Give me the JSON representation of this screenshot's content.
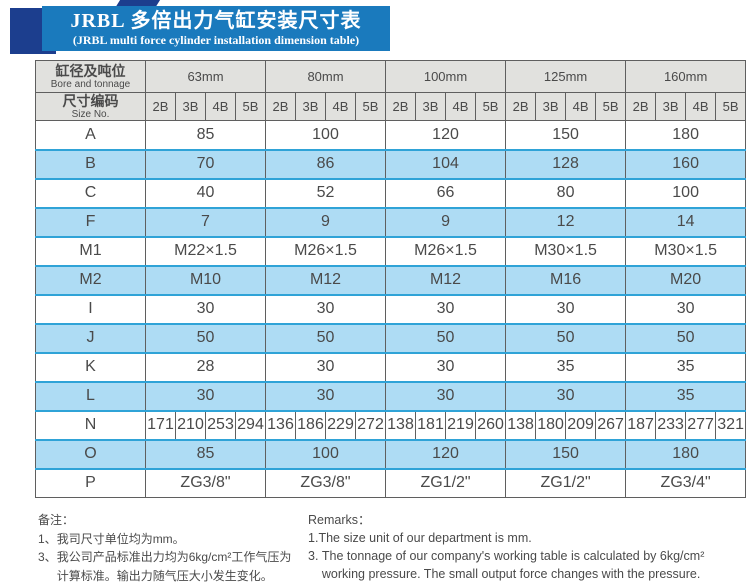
{
  "banner": {
    "title_cn": "JRBL 多倍出力气缸安装尺寸表",
    "title_en": "(JRBL multi force cylinder installation dimension table)"
  },
  "table": {
    "corner": {
      "bore_cn": "缸径及吨位",
      "bore_en": "Bore and tonnage",
      "size_cn": "尺寸编码",
      "size_en": "Size No."
    },
    "bores": [
      "63mm",
      "80mm",
      "100mm",
      "125mm",
      "160mm"
    ],
    "size_codes": [
      "2B",
      "3B",
      "4B",
      "5B"
    ],
    "rows": [
      {
        "label": "A",
        "type": "merged",
        "values": [
          "85",
          "100",
          "120",
          "150",
          "180"
        ]
      },
      {
        "label": "B",
        "type": "merged",
        "values": [
          "70",
          "86",
          "104",
          "128",
          "160"
        ]
      },
      {
        "label": "C",
        "type": "merged",
        "values": [
          "40",
          "52",
          "66",
          "80",
          "100"
        ]
      },
      {
        "label": "F",
        "type": "merged",
        "values": [
          "7",
          "9",
          "9",
          "12",
          "14"
        ]
      },
      {
        "label": "M1",
        "type": "merged",
        "values": [
          "M22×1.5",
          "M26×1.5",
          "M26×1.5",
          "M30×1.5",
          "M30×1.5"
        ]
      },
      {
        "label": "M2",
        "type": "merged",
        "values": [
          "M10",
          "M12",
          "M12",
          "M16",
          "M20"
        ]
      },
      {
        "label": "I",
        "type": "merged",
        "values": [
          "30",
          "30",
          "30",
          "30",
          "30"
        ]
      },
      {
        "label": "J",
        "type": "merged",
        "values": [
          "50",
          "50",
          "50",
          "50",
          "50"
        ]
      },
      {
        "label": "K",
        "type": "merged",
        "values": [
          "28",
          "30",
          "30",
          "35",
          "35"
        ]
      },
      {
        "label": "L",
        "type": "merged",
        "values": [
          "30",
          "30",
          "30",
          "30",
          "35"
        ]
      },
      {
        "label": "N",
        "type": "per_size",
        "values": [
          [
            "171",
            "210",
            "253",
            "294"
          ],
          [
            "136",
            "186",
            "229",
            "272"
          ],
          [
            "138",
            "181",
            "219",
            "260"
          ],
          [
            "138",
            "180",
            "209",
            "267"
          ],
          [
            "187",
            "233",
            "277",
            "321"
          ]
        ]
      },
      {
        "label": "O",
        "type": "merged",
        "values": [
          "85",
          "100",
          "120",
          "150",
          "180"
        ]
      },
      {
        "label": "P",
        "type": "merged",
        "values": [
          "ZG3/8\"",
          "ZG3/8\"",
          "ZG1/2\"",
          "ZG1/2\"",
          "ZG3/4\""
        ]
      }
    ]
  },
  "notes_cn": {
    "title": "备注：",
    "items": [
      {
        "num": "1、",
        "text": "我司尺寸单位均为mm。"
      },
      {
        "num": "3、",
        "text": "我公司产品标准出力均为6kg/cm²工作气压为计算标准。输出力随气压大小发生变化。"
      }
    ]
  },
  "notes_en": {
    "title": "Remarks：",
    "items": [
      {
        "num": "1.",
        "text": "The size unit of our department is mm."
      },
      {
        "num": "3. ",
        "text": "The tonnage of our company's working table is calculated by 6kg/cm² working pressure. The small output force changes with the pressure."
      }
    ]
  },
  "colors": {
    "banner_blue": "#1a7abd",
    "navy_square": "#1c3e8e",
    "row_blue_bg": "#aedcf4",
    "row_blue_line": "#2fa3d7",
    "header_gray": "#e1e1de",
    "text": "#4a4a4a"
  }
}
